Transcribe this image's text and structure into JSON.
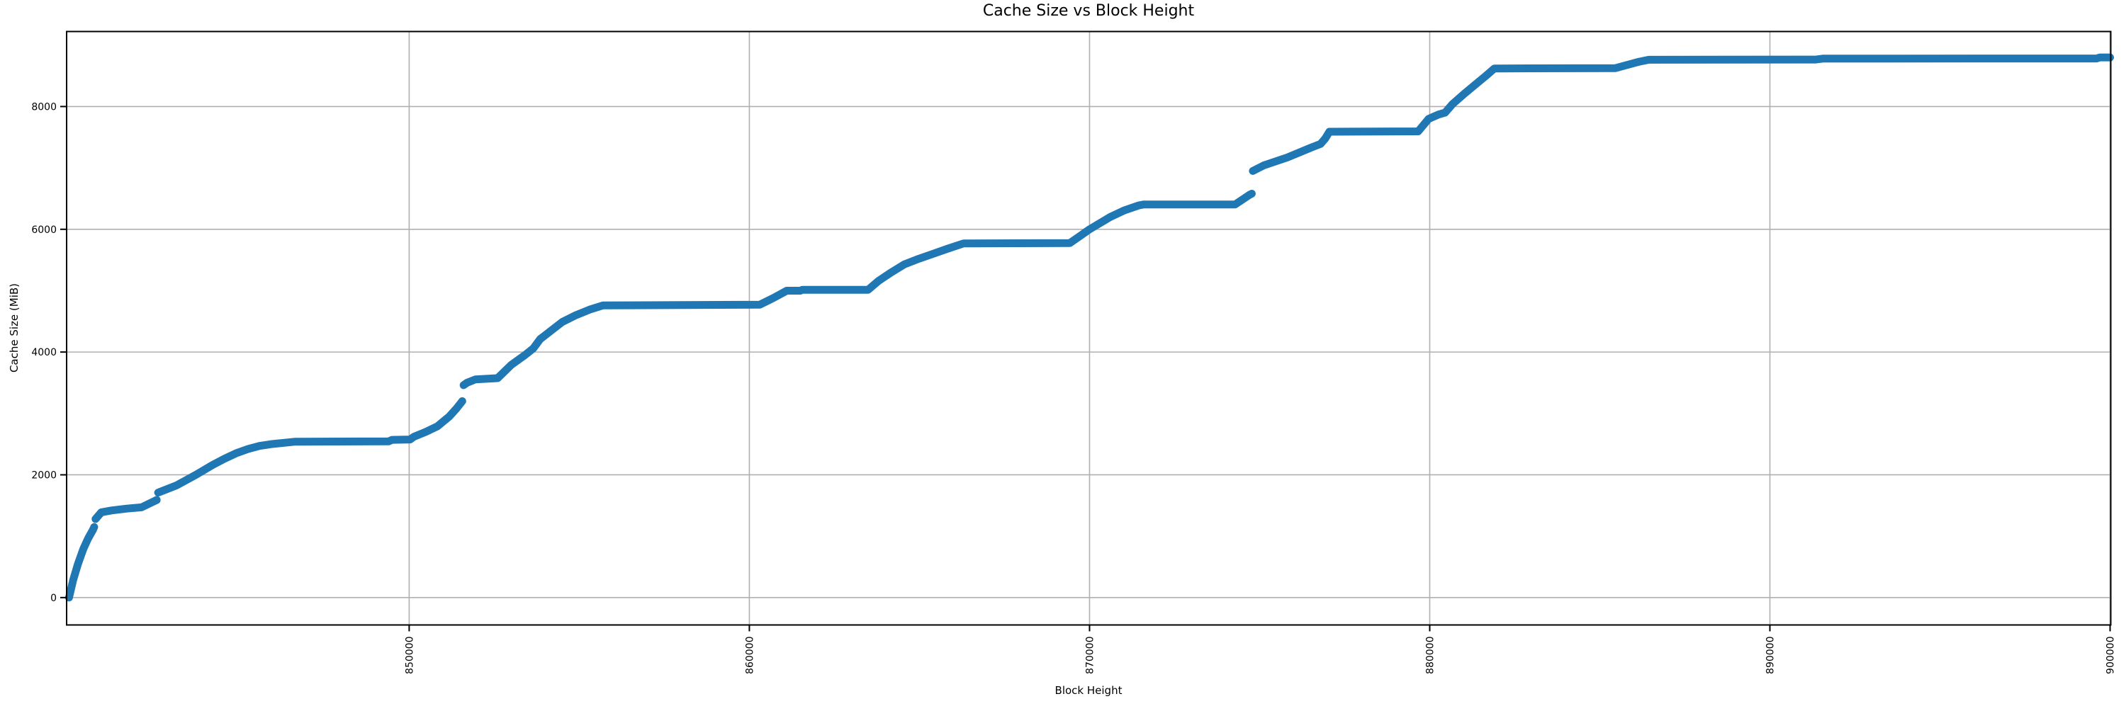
{
  "page": {
    "background": "#ffffff"
  },
  "chart_data": {
    "type": "line",
    "title": "Cache Size vs Block Height",
    "xlabel": "Block Height",
    "ylabel": "Cache Size (MiB)",
    "xlim": [
      839930,
      900020
    ],
    "ylim": [
      -446,
      9222
    ],
    "x_ticks": [
      850000,
      860000,
      870000,
      880000,
      890000,
      900000
    ],
    "x_tick_labels": [
      "850000",
      "860000",
      "870000",
      "880000",
      "890000",
      "900000"
    ],
    "y_ticks": [
      0,
      2000,
      4000,
      6000,
      8000
    ],
    "y_tick_labels": [
      "0",
      "2000",
      "4000",
      "6000",
      "8000"
    ],
    "grid": true,
    "legend": "none",
    "line_color": "#1f77b4",
    "line_width": 11,
    "grid_color": "#b0b0b0",
    "spine_color": "#000000",
    "x_tick_label_rotation": -90,
    "series": [
      {
        "name": "cache-size",
        "segments": [
          [
            [
              840000,
              0
            ],
            [
              840120,
              280
            ],
            [
              840260,
              540
            ],
            [
              840420,
              790
            ],
            [
              840560,
              960
            ],
            [
              840700,
              1100
            ],
            [
              840740,
              1150
            ]
          ],
          [
            [
              840780,
              1280
            ],
            [
              840950,
              1390
            ],
            [
              841250,
              1420
            ],
            [
              841700,
              1450
            ],
            [
              842130,
              1470
            ],
            [
              842580,
              1590
            ]
          ],
          [
            [
              842620,
              1710
            ],
            [
              843170,
              1830
            ],
            [
              843730,
              2000
            ],
            [
              844220,
              2160
            ],
            [
              844560,
              2260
            ],
            [
              844910,
              2350
            ],
            [
              845260,
              2420
            ],
            [
              845600,
              2470
            ],
            [
              845950,
              2500
            ],
            [
              846650,
              2540
            ],
            [
              849400,
              2545
            ],
            [
              849500,
              2570
            ],
            [
              850030,
              2575
            ],
            [
              850140,
              2620
            ],
            [
              850490,
              2700
            ],
            [
              850830,
              2790
            ],
            [
              851180,
              2950
            ],
            [
              851390,
              3080
            ],
            [
              851560,
              3200
            ]
          ],
          [
            [
              851600,
              3460
            ],
            [
              851700,
              3500
            ],
            [
              851950,
              3555
            ],
            [
              852600,
              3575
            ],
            [
              853000,
              3790
            ],
            [
              853400,
              3950
            ],
            [
              853650,
              4060
            ],
            [
              853850,
              4210
            ],
            [
              854150,
              4340
            ],
            [
              854500,
              4490
            ],
            [
              854900,
              4600
            ],
            [
              855300,
              4690
            ],
            [
              855700,
              4760
            ],
            [
              860310,
              4772
            ],
            [
              860700,
              4880
            ],
            [
              861100,
              5000
            ],
            [
              861500,
              5000
            ],
            [
              861560,
              5015
            ],
            [
              863490,
              5015
            ],
            [
              863800,
              5160
            ],
            [
              864150,
              5290
            ],
            [
              864560,
              5430
            ],
            [
              864980,
              5520
            ],
            [
              865400,
              5600
            ],
            [
              865810,
              5680
            ],
            [
              866300,
              5770
            ],
            [
              869420,
              5775
            ],
            [
              870000,
              6000
            ],
            [
              870610,
              6200
            ],
            [
              871030,
              6310
            ],
            [
              871450,
              6390
            ],
            [
              871600,
              6405
            ],
            [
              874280,
              6405
            ],
            [
              874700,
              6560
            ],
            [
              874770,
              6580
            ]
          ],
          [
            [
              874800,
              6950
            ],
            [
              875120,
              7040
            ],
            [
              875810,
              7170
            ],
            [
              876510,
              7330
            ],
            [
              876790,
              7390
            ],
            [
              876930,
              7480
            ],
            [
              877050,
              7590
            ],
            [
              879660,
              7595
            ],
            [
              879970,
              7800
            ],
            [
              880260,
              7870
            ],
            [
              880450,
              7900
            ],
            [
              880670,
              8040
            ],
            [
              881020,
              8210
            ],
            [
              881370,
              8370
            ],
            [
              881650,
              8500
            ],
            [
              881900,
              8620
            ],
            [
              885460,
              8625
            ],
            [
              886160,
              8730
            ],
            [
              886440,
              8762
            ],
            [
              891350,
              8765
            ],
            [
              891550,
              8780
            ],
            [
              899600,
              8782
            ],
            [
              899700,
              8800
            ],
            [
              900000,
              8800
            ]
          ]
        ]
      }
    ]
  }
}
